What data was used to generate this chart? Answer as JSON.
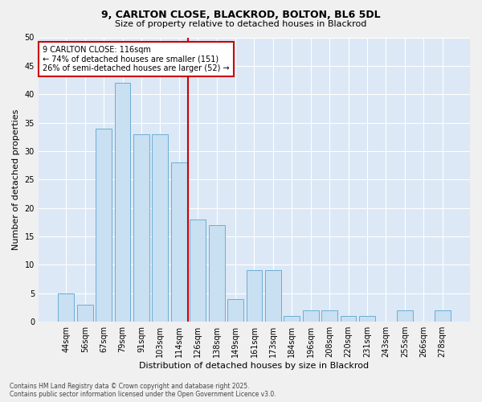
{
  "title_line1": "9, CARLTON CLOSE, BLACKROD, BOLTON, BL6 5DL",
  "title_line2": "Size of property relative to detached houses in Blackrod",
  "xlabel": "Distribution of detached houses by size in Blackrod",
  "ylabel": "Number of detached properties",
  "categories": [
    "44sqm",
    "56sqm",
    "67sqm",
    "79sqm",
    "91sqm",
    "103sqm",
    "114sqm",
    "126sqm",
    "138sqm",
    "149sqm",
    "161sqm",
    "173sqm",
    "184sqm",
    "196sqm",
    "208sqm",
    "220sqm",
    "231sqm",
    "243sqm",
    "255sqm",
    "266sqm",
    "278sqm"
  ],
  "values": [
    5,
    3,
    34,
    42,
    33,
    33,
    28,
    18,
    17,
    4,
    9,
    9,
    1,
    2,
    2,
    1,
    1,
    0,
    2,
    0,
    2
  ],
  "bar_color": "#c9dff2",
  "bar_edge_color": "#6aaed6",
  "vline_x_index": 6,
  "vline_color": "#cc0000",
  "annotation_line1": "9 CARLTON CLOSE: 116sqm",
  "annotation_line2": "← 74% of detached houses are smaller (151)",
  "annotation_line3": "26% of semi-detached houses are larger (52) →",
  "annotation_box_color": "#cc0000",
  "ylim": [
    0,
    50
  ],
  "yticks": [
    0,
    5,
    10,
    15,
    20,
    25,
    30,
    35,
    40,
    45,
    50
  ],
  "fig_bg_color": "#f0f0f0",
  "plot_bg_color": "#dce8f5",
  "grid_color": "#ffffff",
  "footer_text": "Contains HM Land Registry data © Crown copyright and database right 2025.\nContains public sector information licensed under the Open Government Licence v3.0.",
  "title_fontsize": 9,
  "subtitle_fontsize": 8,
  "xlabel_fontsize": 8,
  "ylabel_fontsize": 8,
  "tick_fontsize": 7,
  "annot_fontsize": 7,
  "footer_fontsize": 5.5
}
